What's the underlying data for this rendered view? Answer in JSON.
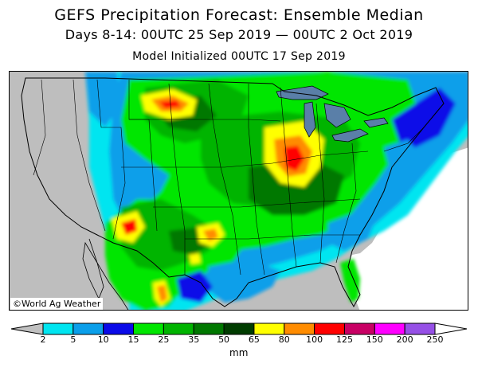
{
  "title": "GEFS Precipitation Forecast: Ensemble Median",
  "subtitle": "Days 8-14: 00UTC 25 Sep 2019 — 00UTC 2 Oct 2019",
  "init": "Model Initialized 00UTC 17 Sep 2019",
  "credit": "©World Ag Weather",
  "units": "mm",
  "scale": {
    "ticks": [
      "2",
      "5",
      "10",
      "15",
      "25",
      "35",
      "50",
      "65",
      "80",
      "100",
      "125",
      "150",
      "200",
      "250"
    ],
    "colors": [
      "#c0c0c0",
      "#00e5f0",
      "#0a9fea",
      "#0a0ae8",
      "#00e600",
      "#00b400",
      "#007800",
      "#003c00",
      "#ffff00",
      "#ff8c00",
      "#ff0000",
      "#c80064",
      "#ff00ff",
      "#9650e6",
      "#ffffff"
    ]
  },
  "map_colors": {
    "land": "#bebebe",
    "ocean": "#ffffff",
    "border": "#000000"
  }
}
